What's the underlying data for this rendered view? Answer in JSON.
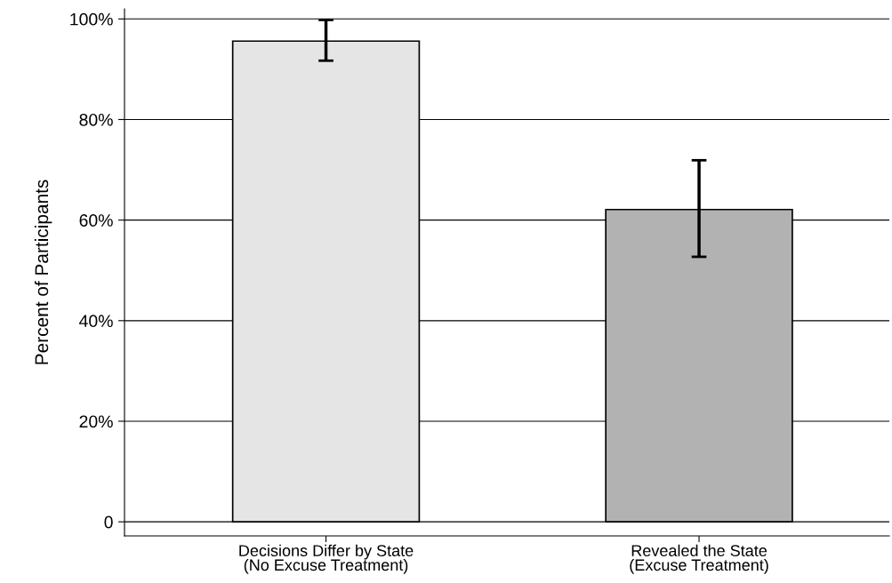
{
  "chart_data": {
    "type": "bar",
    "ylabel": "Percent of Participants",
    "categories": [
      "Decisions Differ by State\n(No Excuse Treatment)",
      "Revealed the State\n(Excuse Treatment)"
    ],
    "values": [
      95.6,
      62.1
    ],
    "colors": [
      "#e5e5e5",
      "#b2b2b2"
    ],
    "errors": [
      [
        91.7,
        99.8
      ],
      [
        52.7,
        71.9
      ]
    ],
    "ylim": [
      -2.8,
      102
    ],
    "yticks": [
      {
        "value": 0,
        "label": "0"
      },
      {
        "value": 20,
        "label": "20%"
      },
      {
        "value": 40,
        "label": "40%"
      },
      {
        "value": 60,
        "label": "60%"
      },
      {
        "value": 80,
        "label": "80%"
      },
      {
        "value": 100,
        "label": "100%"
      }
    ],
    "grid": "y",
    "legend": false
  }
}
